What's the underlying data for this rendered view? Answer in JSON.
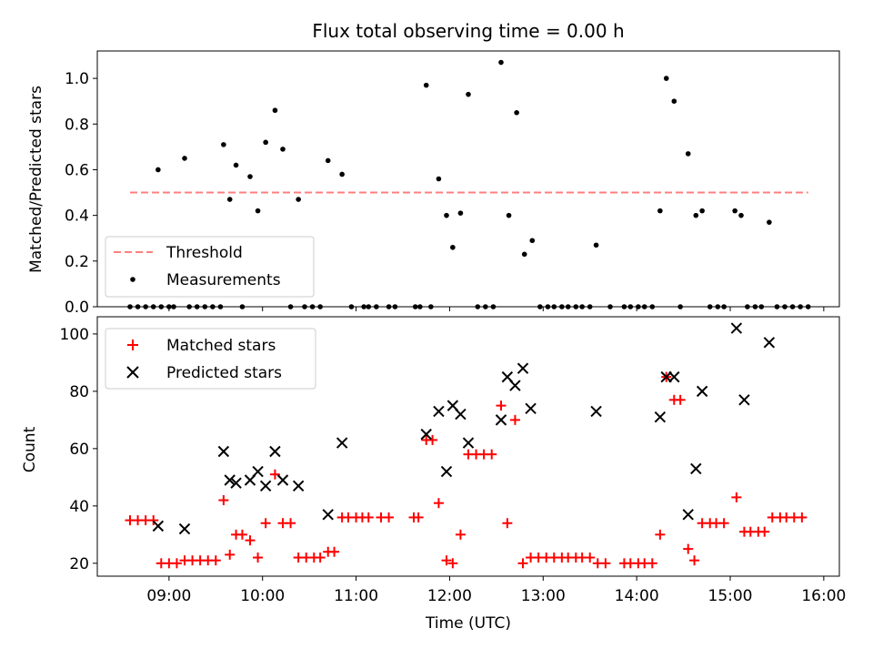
{
  "chart_data": [
    {
      "type": "scatter",
      "title": "Flux total observing time = 0.00 h",
      "xlabel": "",
      "ylabel": "Matched/Predicted stars",
      "xlim": [
        "08:14",
        "16:10"
      ],
      "ylim": [
        0,
        1.12
      ],
      "x_ticks": [
        "09:00",
        "10:00",
        "11:00",
        "12:00",
        "13:00",
        "14:00",
        "15:00",
        "16:00"
      ],
      "y_ticks": [
        "0.0",
        "0.2",
        "0.4",
        "0.6",
        "0.8",
        "1.0"
      ],
      "legend_position": "lower-left",
      "grid": false,
      "threshold": {
        "name": "Threshold",
        "value": 0.5,
        "x_range": [
          "08:35",
          "15:50"
        ],
        "color": "#ff7f7f",
        "style": "dashed"
      },
      "series": [
        {
          "name": "Measurements",
          "color": "#000000",
          "marker": "dot",
          "points": [
            [
              "08:35",
              0
            ],
            [
              "08:40",
              0
            ],
            [
              "08:45",
              0
            ],
            [
              "08:50",
              0
            ],
            [
              "08:55",
              0
            ],
            [
              "08:53",
              0.6
            ],
            [
              "09:00",
              0
            ],
            [
              "09:03",
              0
            ],
            [
              "09:10",
              0.65
            ],
            [
              "09:13",
              0
            ],
            [
              "09:18",
              0
            ],
            [
              "09:23",
              0
            ],
            [
              "09:28",
              0
            ],
            [
              "09:33",
              0
            ],
            [
              "09:35",
              0.71
            ],
            [
              "09:39",
              0.47
            ],
            [
              "09:43",
              0.62
            ],
            [
              "09:47",
              0
            ],
            [
              "09:52",
              0.57
            ],
            [
              "09:57",
              0.42
            ],
            [
              "10:02",
              0.72
            ],
            [
              "10:08",
              0.86
            ],
            [
              "10:13",
              0.69
            ],
            [
              "10:18",
              0
            ],
            [
              "10:23",
              0.47
            ],
            [
              "10:27",
              0
            ],
            [
              "10:32",
              0
            ],
            [
              "10:37",
              0
            ],
            [
              "10:42",
              0.64
            ],
            [
              "10:51",
              0.58
            ],
            [
              "10:57",
              0
            ],
            [
              "11:05",
              0
            ],
            [
              "11:08",
              0
            ],
            [
              "11:13",
              0
            ],
            [
              "11:21",
              0
            ],
            [
              "11:25",
              0
            ],
            [
              "11:38",
              0
            ],
            [
              "11:41",
              0
            ],
            [
              "11:45",
              0.97
            ],
            [
              "11:48",
              0
            ],
            [
              "11:53",
              0.56
            ],
            [
              "11:58",
              0.4
            ],
            [
              "12:02",
              0.26
            ],
            [
              "12:07",
              0.41
            ],
            [
              "12:12",
              0.93
            ],
            [
              "12:18",
              0
            ],
            [
              "12:23",
              0
            ],
            [
              "12:28",
              0
            ],
            [
              "12:33",
              1.07
            ],
            [
              "12:38",
              0.4
            ],
            [
              "12:43",
              0.85
            ],
            [
              "12:48",
              0.23
            ],
            [
              "12:53",
              0.29
            ],
            [
              "12:58",
              0
            ],
            [
              "13:03",
              0
            ],
            [
              "13:07",
              0
            ],
            [
              "13:12",
              0
            ],
            [
              "13:16",
              0
            ],
            [
              "13:21",
              0
            ],
            [
              "13:25",
              0
            ],
            [
              "13:30",
              0
            ],
            [
              "13:34",
              0.27
            ],
            [
              "13:43",
              0
            ],
            [
              "13:52",
              0
            ],
            [
              "13:56",
              0
            ],
            [
              "14:01",
              0
            ],
            [
              "14:05",
              0
            ],
            [
              "14:10",
              0
            ],
            [
              "14:15",
              0.42
            ],
            [
              "14:19",
              1.0
            ],
            [
              "14:24",
              0.9
            ],
            [
              "14:28",
              0
            ],
            [
              "14:33",
              0.67
            ],
            [
              "14:38",
              0.4
            ],
            [
              "14:42",
              0.42
            ],
            [
              "14:47",
              0
            ],
            [
              "14:52",
              0
            ],
            [
              "14:56",
              0
            ],
            [
              "15:03",
              0.42
            ],
            [
              "15:07",
              0.4
            ],
            [
              "15:11",
              0
            ],
            [
              "15:16",
              0
            ],
            [
              "15:20",
              0
            ],
            [
              "15:25",
              0.37
            ],
            [
              "15:30",
              0
            ],
            [
              "15:35",
              0
            ],
            [
              "15:40",
              0
            ],
            [
              "15:45",
              0
            ],
            [
              "15:50",
              0
            ]
          ]
        }
      ]
    },
    {
      "type": "scatter",
      "title": "",
      "xlabel": "Time (UTC)",
      "ylabel": "Count",
      "xlim": [
        "08:14",
        "16:10"
      ],
      "ylim": [
        15.5,
        106
      ],
      "x_ticks": [
        "09:00",
        "10:00",
        "11:00",
        "12:00",
        "13:00",
        "14:00",
        "15:00",
        "16:00"
      ],
      "y_ticks": [
        "20",
        "40",
        "60",
        "80",
        "100"
      ],
      "legend_position": "upper-left",
      "grid": false,
      "series": [
        {
          "name": "Matched stars",
          "color": "#ff0000",
          "marker": "plus",
          "points": [
            [
              "08:35",
              35
            ],
            [
              "08:40",
              35
            ],
            [
              "08:45",
              35
            ],
            [
              "08:50",
              35
            ],
            [
              "08:55",
              20
            ],
            [
              "09:00",
              20
            ],
            [
              "09:05",
              20
            ],
            [
              "09:10",
              21
            ],
            [
              "09:15",
              21
            ],
            [
              "09:20",
              21
            ],
            [
              "09:25",
              21
            ],
            [
              "09:30",
              21
            ],
            [
              "09:35",
              42
            ],
            [
              "09:39",
              23
            ],
            [
              "09:43",
              30
            ],
            [
              "09:47",
              30
            ],
            [
              "09:52",
              28
            ],
            [
              "09:57",
              22
            ],
            [
              "10:02",
              34
            ],
            [
              "10:08",
              51
            ],
            [
              "10:13",
              34
            ],
            [
              "10:18",
              34
            ],
            [
              "10:23",
              22
            ],
            [
              "10:28",
              22
            ],
            [
              "10:33",
              22
            ],
            [
              "10:37",
              22
            ],
            [
              "10:42",
              24
            ],
            [
              "10:46",
              24
            ],
            [
              "10:51",
              36
            ],
            [
              "10:55",
              36
            ],
            [
              "11:00",
              36
            ],
            [
              "11:04",
              36
            ],
            [
              "11:08",
              36
            ],
            [
              "11:16",
              36
            ],
            [
              "11:21",
              36
            ],
            [
              "11:37",
              36
            ],
            [
              "11:40",
              36
            ],
            [
              "11:45",
              63
            ],
            [
              "11:49",
              63
            ],
            [
              "11:53",
              41
            ],
            [
              "11:58",
              21
            ],
            [
              "12:02",
              20
            ],
            [
              "12:07",
              30
            ],
            [
              "12:12",
              58
            ],
            [
              "12:17",
              58
            ],
            [
              "12:22",
              58
            ],
            [
              "12:27",
              58
            ],
            [
              "12:33",
              75
            ],
            [
              "12:37",
              34
            ],
            [
              "12:42",
              70
            ],
            [
              "12:47",
              20
            ],
            [
              "12:52",
              22
            ],
            [
              "12:57",
              22
            ],
            [
              "13:02",
              22
            ],
            [
              "13:07",
              22
            ],
            [
              "13:12",
              22
            ],
            [
              "13:16",
              22
            ],
            [
              "13:21",
              22
            ],
            [
              "13:25",
              22
            ],
            [
              "13:30",
              22
            ],
            [
              "13:35",
              20
            ],
            [
              "13:40",
              20
            ],
            [
              "13:52",
              20
            ],
            [
              "13:56",
              20
            ],
            [
              "14:01",
              20
            ],
            [
              "14:05",
              20
            ],
            [
              "14:10",
              20
            ],
            [
              "14:15",
              30
            ],
            [
              "14:19",
              85
            ],
            [
              "14:24",
              77
            ],
            [
              "14:28",
              77
            ],
            [
              "14:33",
              25
            ],
            [
              "14:37",
              21
            ],
            [
              "14:42",
              34
            ],
            [
              "14:47",
              34
            ],
            [
              "14:51",
              34
            ],
            [
              "14:56",
              34
            ],
            [
              "15:04",
              43
            ],
            [
              "15:09",
              31
            ],
            [
              "15:13",
              31
            ],
            [
              "15:18",
              31
            ],
            [
              "15:22",
              31
            ],
            [
              "15:27",
              36
            ],
            [
              "15:32",
              36
            ],
            [
              "15:36",
              36
            ],
            [
              "15:41",
              36
            ],
            [
              "15:46",
              36
            ]
          ]
        },
        {
          "name": "Predicted stars",
          "color": "#000000",
          "marker": "x",
          "points": [
            [
              "08:53",
              33
            ],
            [
              "09:10",
              32
            ],
            [
              "09:35",
              59
            ],
            [
              "09:39",
              49
            ],
            [
              "09:43",
              48
            ],
            [
              "09:52",
              49
            ],
            [
              "09:57",
              52
            ],
            [
              "10:02",
              47
            ],
            [
              "10:08",
              59
            ],
            [
              "10:13",
              49
            ],
            [
              "10:23",
              47
            ],
            [
              "10:42",
              37
            ],
            [
              "10:51",
              62
            ],
            [
              "11:45",
              65
            ],
            [
              "11:53",
              73
            ],
            [
              "11:58",
              52
            ],
            [
              "12:02",
              75
            ],
            [
              "12:07",
              72
            ],
            [
              "12:12",
              62
            ],
            [
              "12:33",
              70
            ],
            [
              "12:37",
              85
            ],
            [
              "12:42",
              82
            ],
            [
              "12:47",
              88
            ],
            [
              "12:52",
              74
            ],
            [
              "13:34",
              73
            ],
            [
              "14:15",
              71
            ],
            [
              "14:19",
              85
            ],
            [
              "14:24",
              85
            ],
            [
              "14:33",
              37
            ],
            [
              "14:38",
              53
            ],
            [
              "14:42",
              80
            ],
            [
              "15:04",
              102
            ],
            [
              "15:09",
              77
            ],
            [
              "15:25",
              97
            ]
          ]
        }
      ]
    }
  ]
}
